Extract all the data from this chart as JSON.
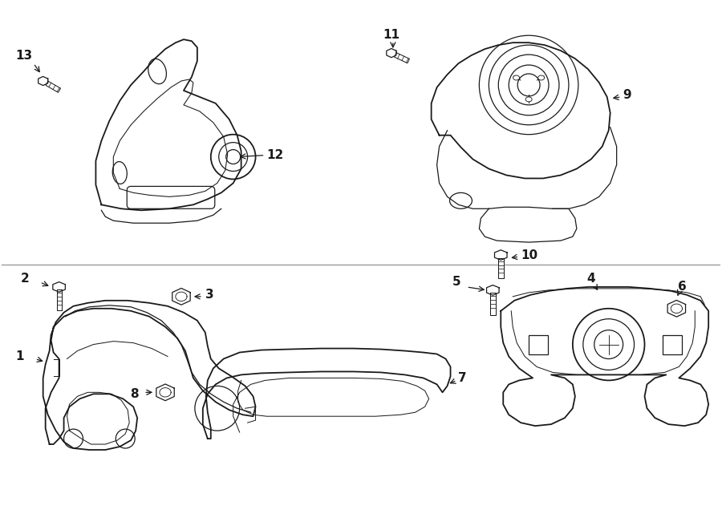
{
  "bg_color": "#ffffff",
  "line_color": "#1a1a1a",
  "font_size": 11,
  "figsize": [
    9.0,
    6.61
  ],
  "dpi": 100
}
